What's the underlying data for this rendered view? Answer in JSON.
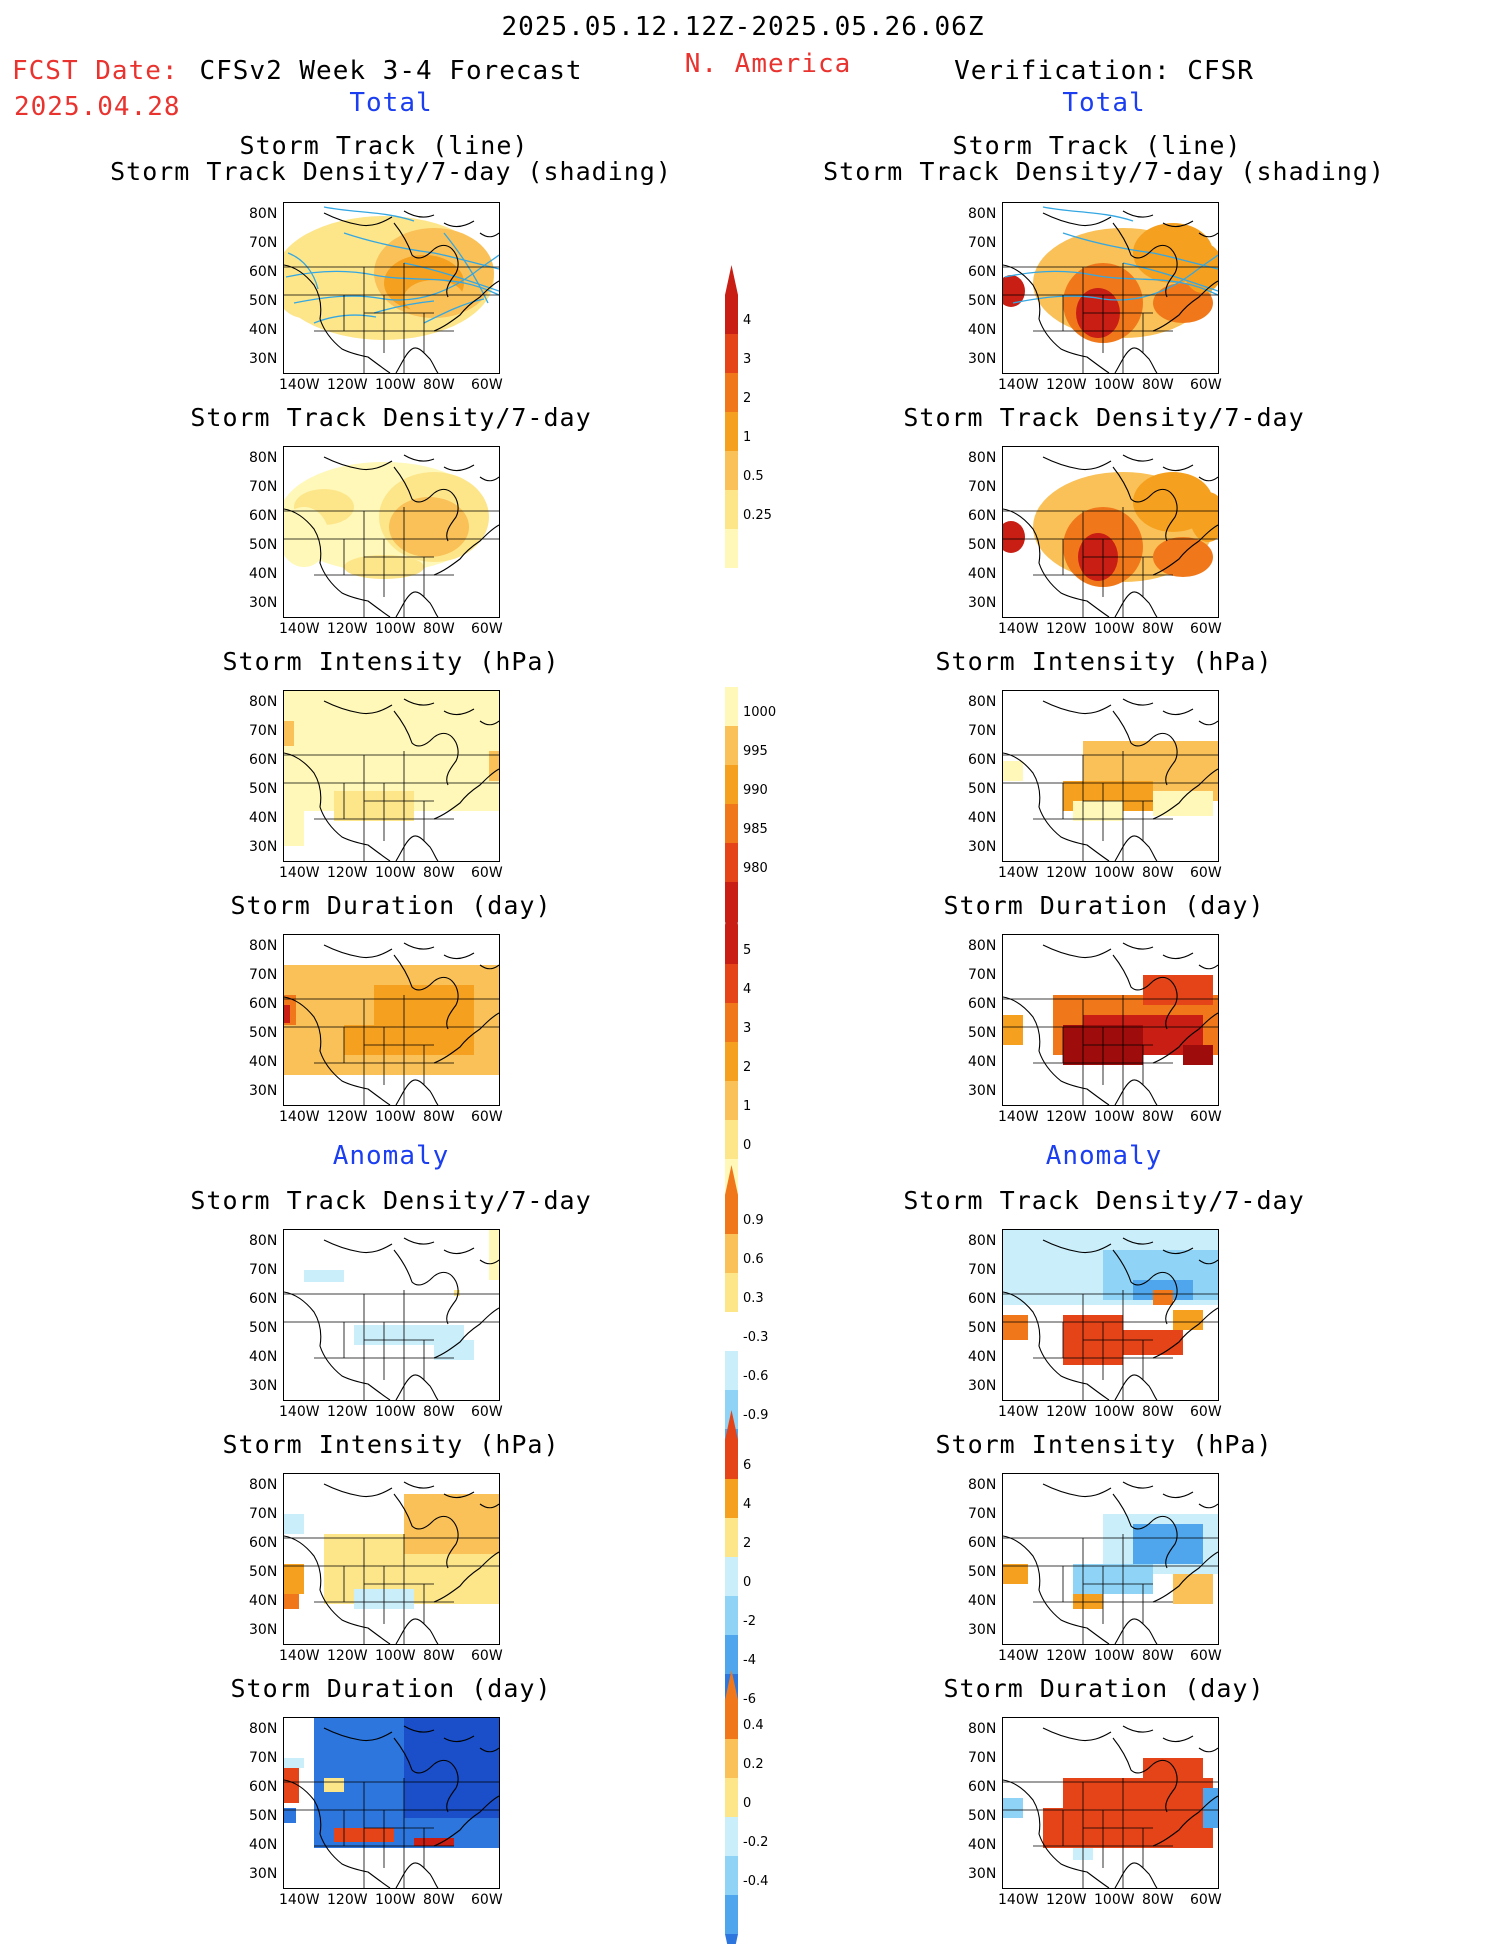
{
  "header": {
    "date_range": "2025.05.12.12Z-2025.05.26.06Z",
    "fcst_label": "FCST Date:",
    "fcst_date": "2025.04.28",
    "forecast_title": "CFSv2 Week 3-4 Forecast",
    "region": "N. America",
    "verification_title": "Verification: CFSR",
    "total_left": "Total",
    "total_right": "Total",
    "anomaly_left": "Anomaly",
    "anomaly_right": "Anomaly"
  },
  "axes": {
    "lat_ticks": [
      "80N",
      "70N",
      "60N",
      "50N",
      "40N",
      "30N"
    ],
    "lon_ticks": [
      "140W",
      "120W",
      "100W",
      "80W",
      "60W"
    ]
  },
  "panels": {
    "track_line": "Storm Track (line)",
    "track_shading": "Storm Track Density/7-day (shading)",
    "density": "Storm Track Density/7-day",
    "intensity": "Storm Intensity (hPa)",
    "duration": "Storm Duration (day)"
  },
  "colorbars": {
    "density_total": [
      "4",
      "3",
      "2",
      "1",
      "0.5",
      "0.25"
    ],
    "intensity_total": [
      "1000",
      "995",
      "990",
      "985",
      "980"
    ],
    "duration_total": [
      "5",
      "4",
      "3",
      "2",
      "1",
      "0"
    ],
    "density_anom": [
      "0.9",
      "0.6",
      "0.3",
      "-0.3",
      "-0.6",
      "-0.9"
    ],
    "intensity_anom": [
      "6",
      "4",
      "2",
      "0",
      "-2",
      "-4",
      "-6"
    ],
    "duration_anom": [
      "0.4",
      "0.2",
      "0",
      "-0.2",
      "-0.4"
    ]
  },
  "colors": {
    "warm": [
      "#fff8b8",
      "#fde58a",
      "#f9c158",
      "#f6a01f",
      "#f0781a",
      "#e44418",
      "#c81e14",
      "#9e0d0b"
    ],
    "cool": [
      "#cbeefb",
      "#8fd4f6",
      "#4fa6ec",
      "#2c76de",
      "#1a4fc9"
    ],
    "track_line": "#34a7e2",
    "header_red": "#e8332f",
    "header_blue": "#1a3ef0"
  }
}
